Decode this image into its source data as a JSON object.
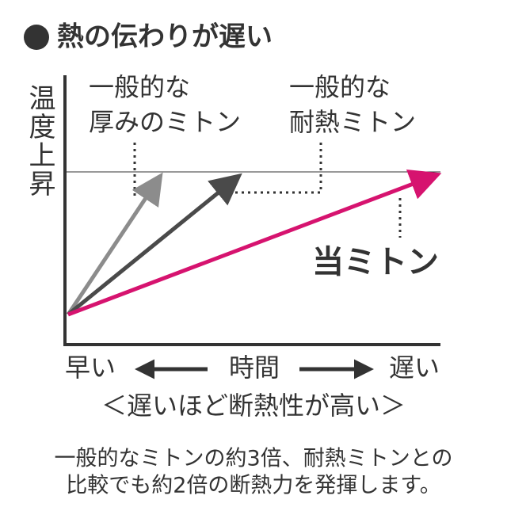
{
  "header": {
    "title": "熱の伝わりが遅い"
  },
  "axes": {
    "y_label": "温度上昇",
    "x_left": "早い",
    "x_center": "時間",
    "x_right": "遅い"
  },
  "labels": {
    "thick_mitten": [
      "一般的な",
      "厚みのミトン"
    ],
    "heat_mitten": [
      "一般的な",
      "耐熱ミトン"
    ],
    "our_mitten": "当ミトン"
  },
  "caption": "＜遅いほど断熱性が高い＞",
  "footer": [
    "一般的なミトンの約3倍、耐熱ミトンとの",
    "比較でも約2倍の断熱力を発揮します。"
  ]
}
